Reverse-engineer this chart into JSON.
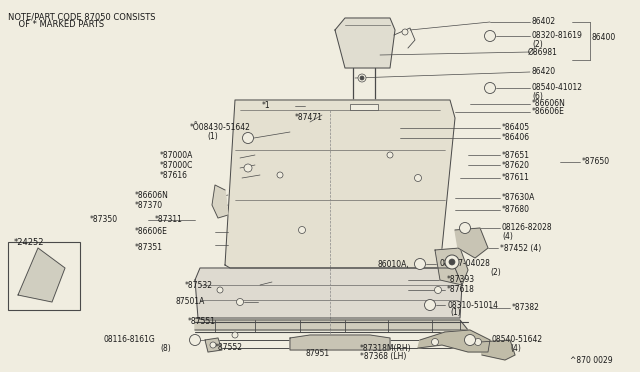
{
  "bg_color": "#f0ede0",
  "line_color": "#4a4a4a",
  "text_color": "#1a1a1a",
  "figsize": [
    6.4,
    3.72
  ],
  "dpi": 100,
  "note_text": "NOTE/PART CODE 87050 CONSISTS\n    OF * MARKED PARTS",
  "footer_text": "^870 0029",
  "box_label": "*24252",
  "font_size": 5.5,
  "title_font_size": 6.5
}
